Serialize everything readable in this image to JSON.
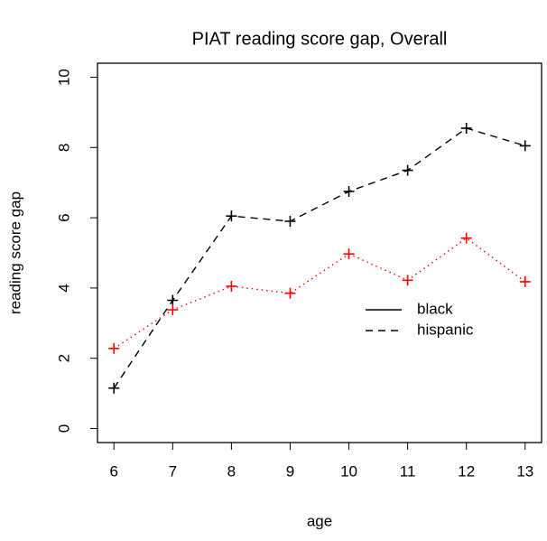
{
  "chart_data": {
    "type": "line",
    "title": "PIAT reading score gap, Overall",
    "x_label": "age",
    "y_label": "reading score gap",
    "x": [
      6,
      7,
      8,
      9,
      10,
      11,
      12,
      13
    ],
    "series": [
      {
        "name": "black",
        "color": "#000000",
        "dash": "dashed",
        "legend_line": "solid",
        "marker": "+",
        "values": [
          1.15,
          3.65,
          6.05,
          5.9,
          6.75,
          7.35,
          8.55,
          8.05
        ]
      },
      {
        "name": "hispanic",
        "color": "#ff0000",
        "dash": "dotted",
        "legend_line": "dashed",
        "marker": "+",
        "values": [
          2.28,
          3.38,
          4.05,
          3.85,
          4.97,
          4.22,
          5.42,
          4.18
        ]
      }
    ],
    "xlim": [
      5.72,
      13.28
    ],
    "xticks": [
      6,
      7,
      8,
      9,
      10,
      11,
      12,
      13
    ],
    "ylim": [
      -0.4,
      10.4
    ],
    "yticks": [
      0,
      2,
      4,
      6,
      8,
      10
    ],
    "grid": false
  }
}
